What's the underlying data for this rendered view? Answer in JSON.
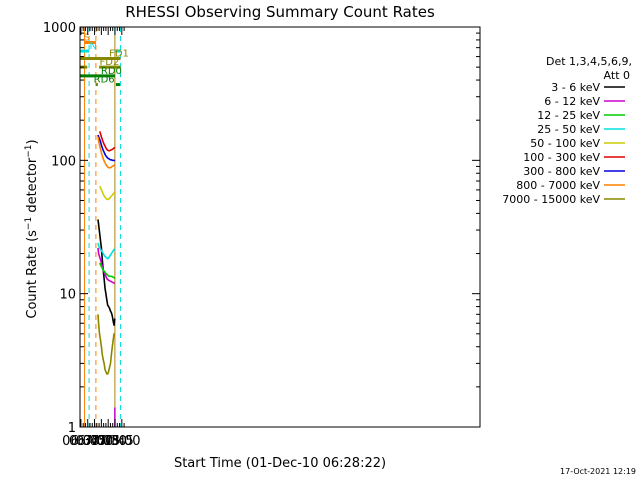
{
  "chart_data": {
    "type": "line",
    "title": "RHESSI Observing Summary Count Rates",
    "xlabel": "Start Time (01-Dec-10 06:28:22)",
    "ylabel": "Count Rate (s⁻¹ detector⁻¹)",
    "ylabel_parts": [
      "Count Rate (s",
      "−1",
      " detector",
      "−1",
      ")"
    ],
    "yscale": "log",
    "xlim": [
      388,
      1268
    ],
    "ylim": [
      1,
      1000
    ],
    "x_ticks": [
      {
        "value": 390,
        "label": "06:30"
      },
      {
        "value": 405,
        "label": "06:45"
      },
      {
        "value": 420,
        "label": "07:00"
      },
      {
        "value": 435,
        "label": "07:15"
      },
      {
        "value": 450,
        "label": "07:30"
      },
      {
        "value": 465,
        "label": "07:45"
      },
      {
        "value": 480,
        "label": "08:00"
      }
    ],
    "y_ticks": [
      {
        "value": 1,
        "label": "1"
      },
      {
        "value": 10,
        "label": "10"
      },
      {
        "value": 100,
        "label": "100"
      },
      {
        "value": 1000,
        "label": "1000"
      }
    ],
    "detectors": "Det 1,3,4,5,6,9,",
    "attenuator": "Att 0",
    "footer_date": "17-Oct-2021 12:19",
    "series": [
      {
        "name": "3 - 6 keV",
        "color": "#000000",
        "x": [
          427.5,
          429,
          431,
          433,
          435,
          437,
          439,
          441,
          443,
          445,
          447,
          449,
          451,
          453,
          455,
          457,
          459,
          461,
          463,
          464.5
        ],
        "y": [
          36,
          33,
          29,
          25,
          22,
          18,
          15,
          13,
          11,
          10,
          9,
          8.2,
          8,
          7.8,
          7.4,
          7.2,
          6.8,
          6.2,
          5.8,
          6.5
        ]
      },
      {
        "name": "6 - 12 keV",
        "color": "#cc00cc",
        "x": [
          427.5,
          429,
          431,
          433,
          435,
          437,
          439,
          441,
          443,
          445,
          447,
          449,
          451,
          453,
          455,
          457,
          459,
          461,
          463,
          464.5
        ],
        "y": [
          22,
          20,
          19,
          18,
          17,
          16,
          15,
          14.5,
          14,
          13.5,
          13,
          12.8,
          12.6,
          12.5,
          12.4,
          12.3,
          12.2,
          12.1,
          12,
          12
        ]
      },
      {
        "name": "12 - 25 keV",
        "color": "#00cc00",
        "x": [
          431.5,
          433,
          435,
          437,
          439,
          441,
          443,
          445,
          447,
          449,
          451,
          453,
          455,
          457,
          459,
          461,
          463,
          464.5
        ],
        "y": [
          17,
          16.5,
          16,
          15.5,
          15,
          14.8,
          14.5,
          14.2,
          14,
          13.8,
          13.6,
          13.5,
          13.5,
          13.5,
          13.4,
          13.3,
          13.2,
          13
        ]
      },
      {
        "name": "25 - 50 keV",
        "color": "#00e0e0",
        "x": [
          427.5,
          429,
          431,
          433,
          435,
          437,
          439,
          441,
          443,
          445,
          447,
          449,
          451,
          453,
          455,
          457,
          459,
          461,
          463,
          464.5
        ],
        "y": [
          24,
          23,
          22,
          21.5,
          21,
          20.5,
          20,
          19.5,
          19,
          18.8,
          18.5,
          18.3,
          18.5,
          19,
          19.5,
          20,
          20.5,
          21,
          21.5,
          21
        ]
      },
      {
        "name": "50 - 100 keV",
        "color": "#cccc00",
        "x": [
          431.5,
          433,
          435,
          437,
          439,
          441,
          443,
          445,
          447,
          449,
          451,
          453,
          455,
          457,
          459,
          461,
          463,
          464.5
        ],
        "y": [
          64,
          62,
          60,
          58,
          56,
          54,
          53,
          52,
          51,
          51,
          51,
          52,
          53,
          54,
          55,
          56,
          57,
          57
        ]
      },
      {
        "name": "100 - 300 keV",
        "color": "#e00000",
        "x": [
          431.5,
          433,
          435,
          437,
          439,
          441,
          443,
          445,
          447,
          449,
          451,
          453,
          455,
          457,
          459,
          461,
          463,
          464.5
        ],
        "y": [
          165,
          158,
          150,
          143,
          137,
          132,
          128,
          124,
          121,
          119,
          118,
          118,
          119,
          120,
          121,
          122,
          124,
          125
        ]
      },
      {
        "name": "300 - 800 keV",
        "color": "#0000dd",
        "x": [
          427.5,
          429,
          431,
          433,
          435,
          437,
          439,
          441,
          443,
          445,
          447,
          449,
          451,
          453,
          455,
          457,
          459,
          461,
          463,
          464.5
        ],
        "y": [
          155,
          150,
          145,
          138,
          130,
          124,
          119,
          115,
          111,
          108,
          106,
          104,
          103,
          102,
          101,
          101,
          100,
          100,
          100,
          99
        ]
      },
      {
        "name": "800 - 7000 keV",
        "color": "#ff8000",
        "x": [
          427.5,
          429,
          431,
          433,
          435,
          437,
          439,
          441,
          443,
          445,
          447,
          449,
          451,
          453,
          455,
          457,
          459,
          461,
          463,
          464.5
        ],
        "y": [
          150,
          140,
          130,
          121,
          114,
          108,
          103,
          99,
          96,
          93,
          91,
          89,
          88,
          88,
          88,
          89,
          90,
          91,
          92,
          92
        ]
      },
      {
        "name": "7000 - 15000 keV",
        "color": "#888800",
        "x": [
          427.5,
          429,
          431,
          433,
          435,
          437,
          439,
          441,
          443,
          445,
          447,
          449,
          451,
          453,
          455,
          457,
          459,
          461,
          463,
          464.5
        ],
        "y": [
          7,
          6,
          5,
          4.5,
          4,
          3.5,
          3.2,
          3,
          2.7,
          2.6,
          2.5,
          2.5,
          2.6,
          2.8,
          3,
          3.5,
          4,
          4.5,
          5,
          5
        ]
      }
    ],
    "spikes": [
      {
        "series": "6 - 12 keV",
        "x": 464.7,
        "y_from": 1,
        "y_to": 1.4
      }
    ],
    "vertical_lines": [
      {
        "x": 388,
        "color": "#00e0e0",
        "style": "solid"
      },
      {
        "x": 408,
        "color": "#00e0e0",
        "style": "dashed"
      },
      {
        "x": 398,
        "color": "#ff8000",
        "style": "solid"
      },
      {
        "x": 423,
        "color": "#ff8000",
        "style": "dashed"
      },
      {
        "x": 464.5,
        "color": "#00e0e0",
        "style": "solid"
      },
      {
        "x": 464.9,
        "color": "#ff8000",
        "style": "solid"
      },
      {
        "x": 477,
        "color": "#00e0e0",
        "style": "dashed"
      }
    ],
    "flag_bars": [
      {
        "label": "S",
        "color": "#ff8000",
        "y": 765,
        "segments": [
          [
            398,
            423
          ]
        ],
        "label_x": 396
      },
      {
        "label": "N",
        "color": "#00e0e0",
        "y": 660,
        "segments": [
          [
            388,
            408
          ],
          [
            464.5,
            477
          ]
        ],
        "label_x": 409
      },
      {
        "label": "FD1",
        "color": "#888800",
        "y": 580,
        "segments": [
          [
            388,
            477
          ]
        ],
        "label_x": 452
      },
      {
        "label": "FD2",
        "color": "#888800",
        "y": 500,
        "segments": [
          [
            388,
            404
          ],
          [
            430,
            476
          ],
          [
            477,
            478
          ]
        ],
        "label_x": 431
      },
      {
        "label": "RD0",
        "color": "#008000",
        "y": 430,
        "segments": [
          [
            388,
            465
          ],
          [
            476.5,
            477
          ]
        ],
        "label_x": 434
      },
      {
        "label": "RD6",
        "color": "#008000",
        "y": 370,
        "segments": [
          [
            424,
            427
          ],
          [
            467,
            476
          ]
        ],
        "label_x": 418
      }
    ]
  }
}
